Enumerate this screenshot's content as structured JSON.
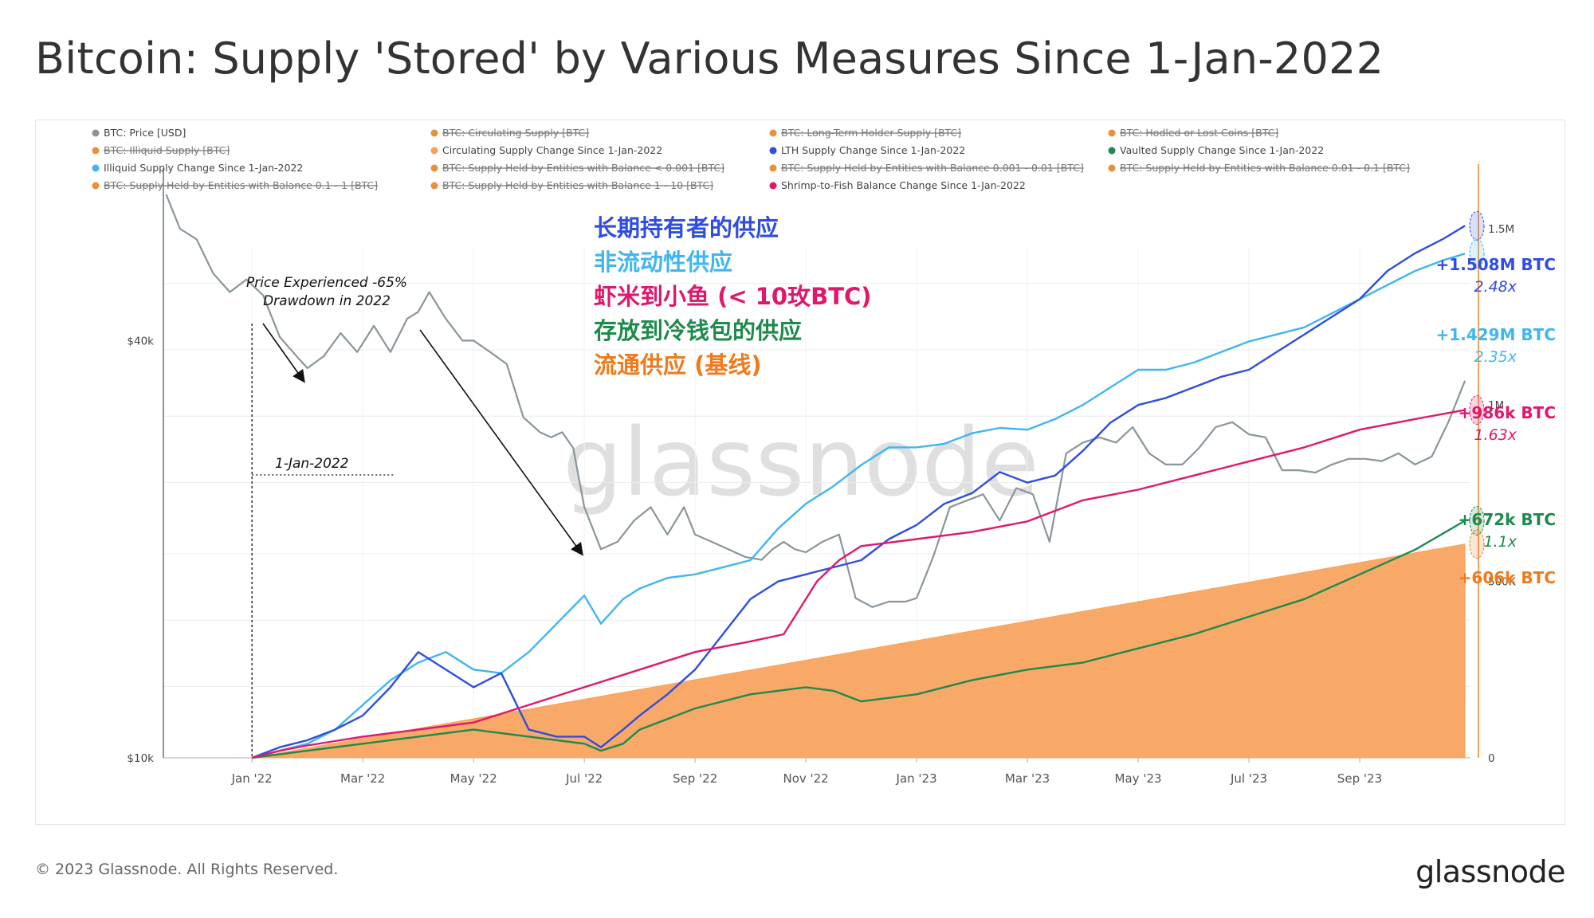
{
  "header": {
    "title": "Bitcoin: Supply 'Stored' by Various Measures Since 1-Jan-2022"
  },
  "footer": {
    "copyright": "© 2023 Glassnode. All Rights Reserved.",
    "logo": "glassnode"
  },
  "watermark": "glassnode",
  "chart_data": {
    "type": "line",
    "legend": [
      {
        "label": "BTC: Price [USD]",
        "color": "#8a959c",
        "struck": false
      },
      {
        "label": "BTC: Circulating Supply [BTC]",
        "color": "#e8913a",
        "struck": true
      },
      {
        "label": "BTC: Long-Term Holder Supply [BTC]",
        "color": "#e8913a",
        "struck": true
      },
      {
        "label": "BTC: Hodled or Lost Coins [BTC]",
        "color": "#e8913a",
        "struck": true
      },
      {
        "label": "BTC: Illiquid Supply [BTC]",
        "color": "#e8913a",
        "struck": true
      },
      {
        "label": "Circulating Supply Change Since 1-Jan-2022",
        "color": "#f7a25b",
        "struck": false
      },
      {
        "label": "LTH Supply Change Since 1-Jan-2022",
        "color": "#2f4de0",
        "struck": false
      },
      {
        "label": "Vaulted Supply Change Since 1-Jan-2022",
        "color": "#1e8a4c",
        "struck": false
      },
      {
        "label": "Illiquid Supply Change Since 1-Jan-2022",
        "color": "#3fb6ef",
        "struck": false
      },
      {
        "label": "BTC: Supply Held by Entities with Balance < 0.001 [BTC]",
        "color": "#e8913a",
        "struck": true
      },
      {
        "label": "BTC: Supply Held by Entities with Balance 0.001 - 0.01 [BTC]",
        "color": "#e8913a",
        "struck": true
      },
      {
        "label": "BTC: Supply Held by Entities with Balance 0.01 - 0.1 [BTC]",
        "color": "#e8913a",
        "struck": true
      },
      {
        "label": "BTC: Supply Held by Entities with Balance 0.1 - 1 [BTC]",
        "color": "#e8913a",
        "struck": true
      },
      {
        "label": "BTC: Supply Held by Entities with Balance 1 - 10 [BTC]",
        "color": "#e8913a",
        "struck": true
      },
      {
        "label": "Shrimp-to-Fish Balance Change Since 1-Jan-2022",
        "color": "#e0186c",
        "struck": false
      }
    ],
    "x_ticks": [
      "Jan '22",
      "Mar '22",
      "May '22",
      "Jul '22",
      "Sep '22",
      "Nov '22",
      "Jan '23",
      "Mar '23",
      "May '23",
      "Jul '23",
      "Sep '23"
    ],
    "x_range_months": [
      -1.6,
      22.0
    ],
    "y_left": {
      "ticks": [
        "$40k",
        "$10k"
      ],
      "scale": "log",
      "range": [
        10000,
        70000
      ]
    },
    "y_right": {
      "ticks": [
        "1.5M",
        "1M",
        "500K",
        "0"
      ],
      "range": [
        0,
        1660000
      ]
    },
    "series": [
      {
        "name": "BTC: Price [USD]",
        "axis": "left",
        "color": "#8a959c",
        "x": [
          -1.55,
          -1.3,
          -1.0,
          -0.7,
          -0.4,
          -0.1,
          0.2,
          0.5,
          0.8,
          1.0,
          1.3,
          1.6,
          1.9,
          2.2,
          2.5,
          2.8,
          3.0,
          3.2,
          3.5,
          3.8,
          4.0,
          4.3,
          4.6,
          4.9,
          5.2,
          5.4,
          5.6,
          5.8,
          6.0,
          6.3,
          6.6,
          6.9,
          7.2,
          7.5,
          7.8,
          8.0,
          8.3,
          8.6,
          8.9,
          9.2,
          9.4,
          9.6,
          9.8,
          10.0,
          10.3,
          10.6,
          10.9,
          11.2,
          11.5,
          11.8,
          12.0,
          12.3,
          12.6,
          12.9,
          13.2,
          13.5,
          13.8,
          14.1,
          14.4,
          14.7,
          15.0,
          15.3,
          15.6,
          15.9,
          16.2,
          16.5,
          16.8,
          17.1,
          17.4,
          17.7,
          18.0,
          18.3,
          18.6,
          18.9,
          19.2,
          19.5,
          19.8,
          20.1,
          20.4,
          20.7,
          21.0,
          21.3,
          21.6,
          21.9
        ],
        "y": [
          65000,
          58000,
          56000,
          50000,
          47000,
          49000,
          46500,
          40500,
          38000,
          36500,
          38000,
          41000,
          38500,
          42000,
          38500,
          43000,
          44000,
          47000,
          43000,
          40000,
          40000,
          38500,
          37000,
          31000,
          29500,
          29000,
          29500,
          28000,
          23000,
          20000,
          20500,
          22000,
          23000,
          21000,
          23000,
          21000,
          20500,
          20000,
          19500,
          19300,
          20000,
          20500,
          20000,
          19800,
          20500,
          21000,
          17000,
          16500,
          16800,
          16800,
          17000,
          19500,
          23000,
          23500,
          24000,
          22000,
          24500,
          24000,
          20500,
          27500,
          28500,
          29000,
          28500,
          30000,
          27500,
          26500,
          26500,
          28000,
          30000,
          30500,
          29300,
          29000,
          26000,
          26000,
          25800,
          26500,
          27000,
          27000,
          26800,
          27500,
          26500,
          27200,
          30500,
          35000
        ]
      },
      {
        "name": "Circulating Supply Change Since 1-Jan-2022",
        "axis": "right",
        "color": "#f7a25b",
        "fill": true,
        "x": [
          0,
          21.9
        ],
        "y": [
          0,
          606000
        ]
      },
      {
        "name": "Illiquid Supply Change Since 1-Jan-2022",
        "axis": "right",
        "color": "#3fb6ef",
        "x": [
          0,
          0.5,
          1,
          1.5,
          2,
          2.5,
          3,
          3.5,
          4,
          4.5,
          5,
          5.5,
          6,
          6.3,
          6.7,
          7,
          7.5,
          8,
          8.5,
          9,
          9.5,
          10,
          10.5,
          11,
          11.5,
          12,
          12.5,
          13,
          13.5,
          14,
          14.5,
          15,
          15.5,
          16,
          16.5,
          17,
          17.5,
          18,
          18.5,
          19,
          19.5,
          20,
          20.5,
          21,
          21.5,
          21.9
        ],
        "y": [
          0,
          20000,
          40000,
          80000,
          150000,
          220000,
          270000,
          300000,
          250000,
          240000,
          300000,
          380000,
          460000,
          380000,
          450000,
          480000,
          510000,
          520000,
          540000,
          560000,
          650000,
          720000,
          770000,
          830000,
          880000,
          880000,
          890000,
          920000,
          935000,
          930000,
          960000,
          1000000,
          1050000,
          1100000,
          1100000,
          1120000,
          1150000,
          1180000,
          1200000,
          1220000,
          1260000,
          1300000,
          1340000,
          1380000,
          1410000,
          1429000
        ]
      },
      {
        "name": "LTH Supply Change Since 1-Jan-2022",
        "axis": "right",
        "color": "#2f4de0",
        "x": [
          0,
          0.5,
          1,
          1.5,
          2,
          2.5,
          3,
          3.5,
          4,
          4.5,
          5,
          5.5,
          6,
          6.3,
          6.7,
          7,
          7.5,
          8,
          8.5,
          9,
          9.5,
          10,
          10.5,
          11,
          11.5,
          12,
          12.5,
          13,
          13.5,
          14,
          14.5,
          15,
          15.5,
          16,
          16.5,
          17,
          17.5,
          18,
          18.5,
          19,
          19.5,
          20,
          20.5,
          21,
          21.5,
          21.9
        ],
        "y": [
          0,
          30000,
          50000,
          80000,
          120000,
          200000,
          300000,
          250000,
          200000,
          240000,
          80000,
          60000,
          60000,
          30000,
          80000,
          120000,
          180000,
          250000,
          350000,
          450000,
          500000,
          520000,
          540000,
          560000,
          620000,
          660000,
          720000,
          750000,
          810000,
          780000,
          800000,
          870000,
          950000,
          1000000,
          1020000,
          1050000,
          1080000,
          1100000,
          1150000,
          1200000,
          1250000,
          1300000,
          1380000,
          1430000,
          1470000,
          1508000
        ]
      },
      {
        "name": "Vaulted Supply Change Since 1-Jan-2022",
        "axis": "right",
        "color": "#1e8a4c",
        "x": [
          0,
          1,
          2,
          3,
          4,
          5,
          6,
          6.3,
          6.7,
          7,
          8,
          9,
          10,
          10.5,
          11,
          12,
          13,
          14,
          15,
          16,
          17,
          18,
          19,
          20,
          21,
          21.9
        ],
        "y": [
          0,
          20000,
          40000,
          60000,
          80000,
          60000,
          40000,
          20000,
          40000,
          80000,
          140000,
          180000,
          200000,
          190000,
          160000,
          180000,
          220000,
          250000,
          270000,
          310000,
          350000,
          400000,
          450000,
          520000,
          590000,
          672000
        ]
      },
      {
        "name": "Shrimp-to-Fish Balance Change Since 1-Jan-2022",
        "axis": "right",
        "color": "#e0186c",
        "x": [
          0,
          0.5,
          1,
          2,
          3,
          4,
          5,
          6,
          7,
          8,
          9,
          9.6,
          9.8,
          10.2,
          10.6,
          11,
          11.5,
          12,
          13,
          14,
          15,
          16,
          17,
          18,
          19,
          20,
          21,
          21.9
        ],
        "y": [
          0,
          20000,
          35000,
          60000,
          80000,
          100000,
          150000,
          200000,
          250000,
          300000,
          330000,
          350000,
          400000,
          500000,
          560000,
          600000,
          610000,
          620000,
          640000,
          670000,
          730000,
          760000,
          800000,
          840000,
          880000,
          930000,
          960000,
          986000
        ]
      }
    ],
    "annotations": {
      "drawdown": "Price Experienced -65%\nDrawdown in 2022",
      "start_date": "1-Jan-2022",
      "cn_labels": [
        {
          "text": "长期持有者的供应",
          "color": "#2f4de0"
        },
        {
          "text": "非流动性供应",
          "color": "#3fb6ef"
        },
        {
          "text": "虾米到小鱼 (< 10玫BTC)",
          "color": "#e0186c"
        },
        {
          "text": "存放到冷钱包的供应",
          "color": "#1e8a4c"
        },
        {
          "text": "流通供应 (基线)",
          "color": "#f07a1a"
        }
      ],
      "end_values": [
        {
          "value": "+1.508M BTC",
          "multiple": "2.48x",
          "color": "#2f4de0",
          "mult_color": "#2f4de0",
          "level": 1508000
        },
        {
          "value": "+1.429M BTC",
          "multiple": "2.35x",
          "color": "#3fb6ef",
          "mult_color": "#3fb6ef",
          "level": 1429000
        },
        {
          "value": "+986k BTC",
          "multiple": "1.63x",
          "color": "#e0186c",
          "mult_color": "#e0186c",
          "level": 986000
        },
        {
          "value": "+672k BTC",
          "multiple": "1.1x",
          "color": "#1e8a4c",
          "mult_color": "#1e8a4c",
          "level": 672000
        },
        {
          "value": "+606k BTC",
          "multiple": "",
          "color": "#f07a1a",
          "mult_color": "#f07a1a",
          "level": 606000
        }
      ]
    }
  }
}
